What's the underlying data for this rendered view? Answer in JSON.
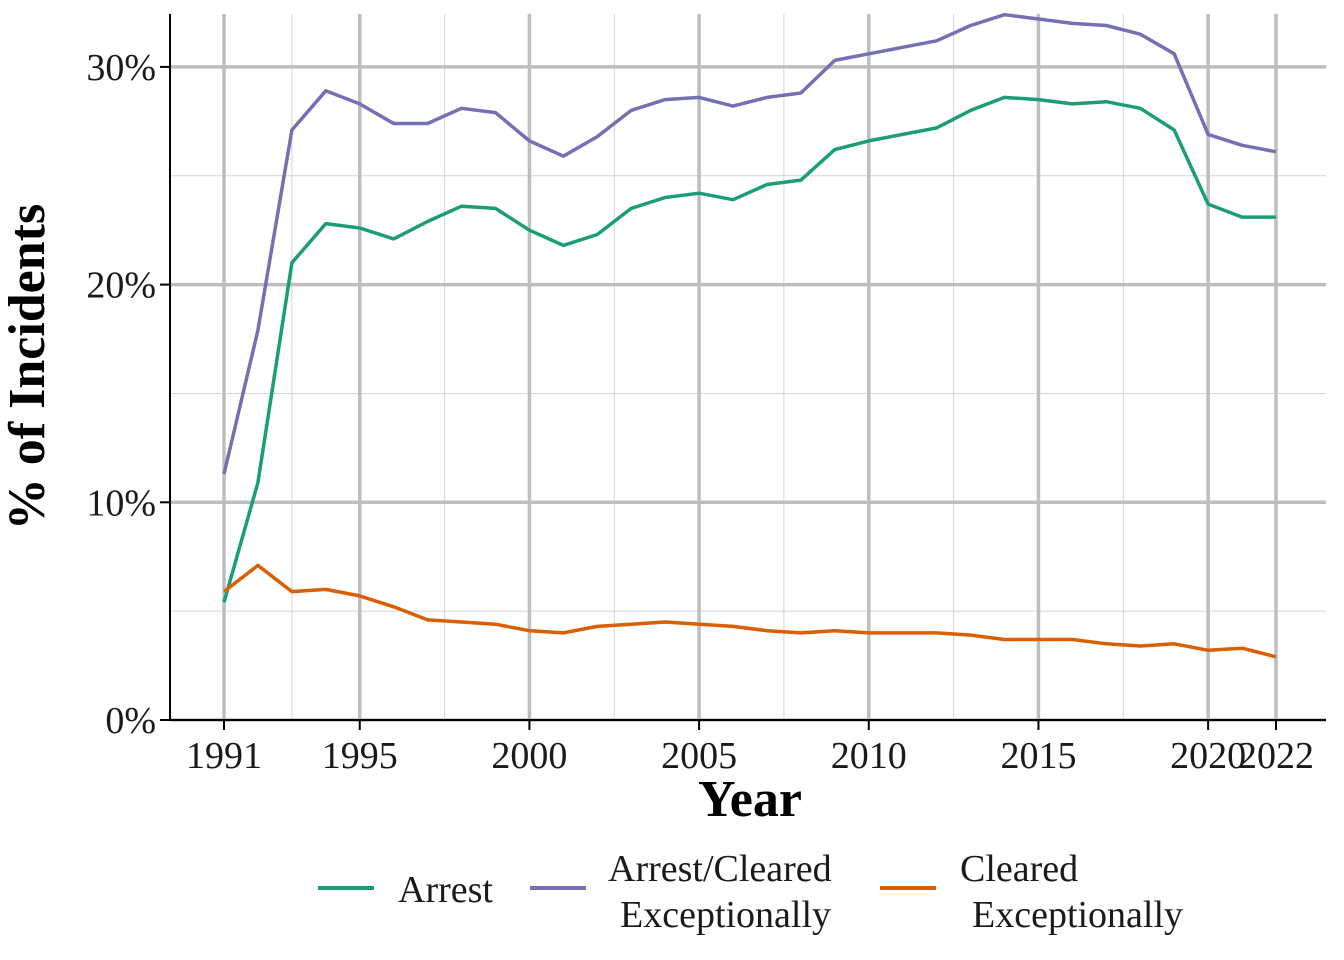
{
  "chart_data": {
    "type": "line",
    "title": "",
    "xlabel": "Year",
    "ylabel": "% of Incidents",
    "xlim": [
      1991,
      2022
    ],
    "ylim": [
      0,
      30
    ],
    "x_ticks": [
      1991,
      1995,
      2000,
      2005,
      2010,
      2015,
      2020,
      2022
    ],
    "y_ticks": [
      0,
      10,
      20,
      30
    ],
    "y_tick_labels": [
      "0%",
      "10%",
      "20%",
      "30%"
    ],
    "grid": true,
    "legend_position": "bottom",
    "x": [
      1991,
      1992,
      1993,
      1994,
      1995,
      1996,
      1997,
      1998,
      1999,
      2000,
      2001,
      2002,
      2003,
      2004,
      2005,
      2006,
      2007,
      2008,
      2009,
      2010,
      2011,
      2012,
      2013,
      2014,
      2015,
      2016,
      2017,
      2018,
      2019,
      2020,
      2021,
      2022
    ],
    "series": [
      {
        "name": "Arrest",
        "legend_lines": [
          "Arrest"
        ],
        "color": "#1b9e77",
        "values": [
          5.4,
          10.9,
          21.0,
          22.8,
          22.6,
          22.1,
          22.9,
          23.6,
          23.5,
          22.5,
          21.8,
          22.3,
          23.5,
          24.0,
          24.2,
          23.9,
          24.6,
          24.8,
          26.2,
          26.6,
          26.9,
          27.2,
          28.0,
          28.6,
          28.5,
          28.3,
          28.4,
          28.1,
          27.1,
          23.7,
          23.1,
          23.1
        ]
      },
      {
        "name": "Arrest/Cleared Exceptionally",
        "legend_lines": [
          "Arrest/Cleared",
          "Exceptionally"
        ],
        "color": "#7570b3",
        "values": [
          11.3,
          17.9,
          27.1,
          28.9,
          28.3,
          27.4,
          27.4,
          28.1,
          27.9,
          26.6,
          25.9,
          26.8,
          28.0,
          28.5,
          28.6,
          28.2,
          28.6,
          28.8,
          30.3,
          30.6,
          30.9,
          31.2,
          31.9,
          32.4,
          32.2,
          32.0,
          31.9,
          31.5,
          30.6,
          26.9,
          26.4,
          26.1
        ]
      },
      {
        "name": "Cleared Exceptionally",
        "legend_lines": [
          "Cleared",
          "Exceptionally"
        ],
        "color": "#d95f02",
        "values": [
          5.9,
          7.1,
          5.9,
          6.0,
          5.7,
          5.2,
          4.6,
          4.5,
          4.4,
          4.1,
          4.0,
          4.3,
          4.4,
          4.5,
          4.4,
          4.3,
          4.1,
          4.0,
          4.1,
          4.0,
          4.0,
          4.0,
          3.9,
          3.7,
          3.7,
          3.7,
          3.5,
          3.4,
          3.5,
          3.2,
          3.3,
          2.9
        ]
      }
    ]
  }
}
